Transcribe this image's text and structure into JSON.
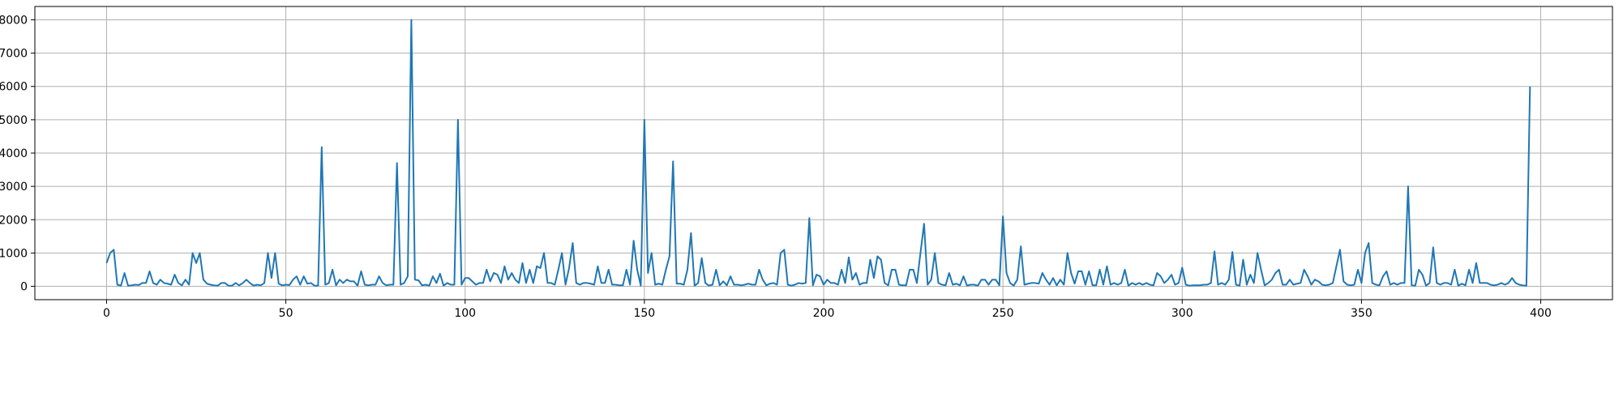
{
  "chart_data": {
    "type": "line",
    "title": "",
    "xlabel": "",
    "ylabel": "",
    "xlim": [
      -20,
      420
    ],
    "ylim": [
      -400,
      8400
    ],
    "xticks": [
      0,
      50,
      100,
      150,
      200,
      250,
      300,
      350,
      400
    ],
    "yticks": [
      0,
      1000,
      2000,
      3000,
      4000,
      5000,
      6000,
      7000,
      8000
    ],
    "xtick_labels": [
      "0",
      "50",
      "100",
      "150",
      "200",
      "250",
      "300",
      "350",
      "400"
    ],
    "ytick_labels": [
      "0",
      "1000",
      "2000",
      "3000",
      "4000",
      "5000",
      "6000",
      "7000",
      "8000"
    ],
    "grid": true,
    "line_color": "#1f77b4",
    "grid_color": "#b0b0b0",
    "series": [
      {
        "x_start": 0,
        "x_step": 1,
        "values": [
          700,
          1000,
          1100,
          50,
          20,
          400,
          20,
          30,
          50,
          40,
          100,
          100,
          450,
          100,
          50,
          200,
          100,
          80,
          50,
          350,
          100,
          30,
          200,
          50,
          1000,
          700,
          1000,
          200,
          80,
          50,
          30,
          20,
          100,
          100,
          20,
          20,
          100,
          30,
          100,
          200,
          100,
          20,
          50,
          30,
          100,
          1000,
          250,
          1000,
          80,
          30,
          50,
          40,
          200,
          300,
          50,
          300,
          80,
          100,
          20,
          20,
          4180,
          50,
          100,
          500,
          30,
          200,
          100,
          200,
          150,
          150,
          20,
          450,
          50,
          30,
          50,
          50,
          300,
          100,
          30,
          50,
          50,
          3700,
          50,
          100,
          300,
          8000,
          200,
          180,
          30,
          50,
          20,
          300,
          100,
          380,
          20,
          100,
          50,
          50,
          5000,
          50,
          250,
          250,
          150,
          50,
          100,
          100,
          500,
          150,
          400,
          350,
          100,
          600,
          200,
          400,
          200,
          100,
          700,
          100,
          500,
          100,
          600,
          550,
          1000,
          100,
          100,
          50,
          500,
          1000,
          50,
          550,
          1300,
          100,
          50,
          100,
          100,
          80,
          50,
          600,
          100,
          100,
          500,
          50,
          50,
          30,
          30,
          500,
          50,
          1370,
          500,
          20,
          5000,
          400,
          1000,
          50,
          80,
          50,
          500,
          900,
          3750,
          80,
          80,
          50,
          500,
          1600,
          20,
          100,
          850,
          100,
          20,
          50,
          500,
          30,
          150,
          30,
          300,
          50,
          50,
          30,
          50,
          80,
          50,
          50,
          500,
          200,
          30,
          80,
          100,
          50,
          1000,
          1100,
          50,
          20,
          50,
          100,
          80,
          100,
          2050,
          30,
          350,
          300,
          50,
          200,
          100,
          100,
          50,
          500,
          100,
          870,
          200,
          400,
          50,
          100,
          100,
          800,
          250,
          900,
          800,
          100,
          30,
          500,
          500,
          50,
          30,
          30,
          500,
          500,
          100,
          1000,
          1880,
          50,
          200,
          1000,
          100,
          50,
          30,
          400,
          50,
          80,
          30,
          300,
          20,
          50,
          50,
          20,
          200,
          200,
          50,
          200,
          200,
          30,
          2100,
          400,
          100,
          20,
          200,
          1200,
          50,
          80,
          100,
          100,
          80,
          400,
          200,
          50,
          250,
          30,
          200,
          50,
          1000,
          400,
          80,
          450,
          450,
          50,
          450,
          30,
          30,
          500,
          50,
          600,
          50,
          100,
          50,
          100,
          500,
          20,
          100,
          50,
          100,
          50,
          100,
          50,
          30,
          400,
          300,
          100,
          200,
          350,
          50,
          100,
          560,
          50,
          20,
          30,
          30,
          30,
          50,
          50,
          100,
          1050,
          50,
          100,
          50,
          200,
          1030,
          50,
          20,
          800,
          50,
          350,
          100,
          1000,
          500,
          30,
          100,
          200,
          400,
          500,
          50,
          50,
          200,
          50,
          80,
          100,
          500,
          300,
          50,
          200,
          150,
          50,
          30,
          50,
          100,
          600,
          1100,
          150,
          50,
          30,
          50,
          500,
          100,
          1000,
          1300,
          100,
          50,
          30,
          300,
          450,
          50,
          100,
          50,
          100,
          100,
          3000,
          30,
          20,
          500,
          350,
          20,
          100,
          1170,
          100,
          50,
          100,
          100,
          50,
          500,
          20,
          80,
          30,
          500,
          100,
          700,
          100,
          100,
          100,
          50,
          30,
          50,
          100,
          50,
          100,
          250,
          100,
          50,
          30,
          20,
          6000
        ]
      }
    ]
  }
}
